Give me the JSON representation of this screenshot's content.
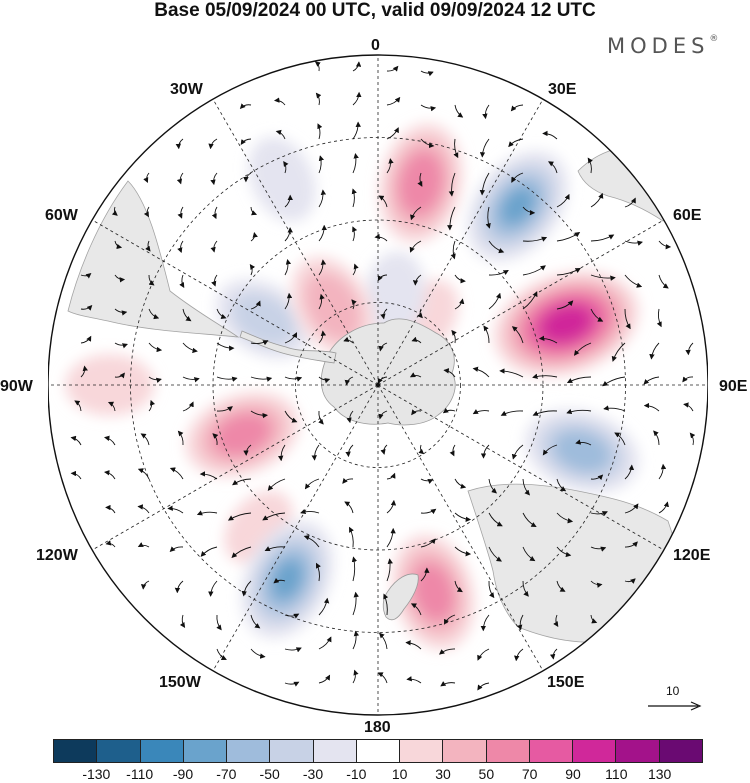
{
  "title": "Base 05/09/2024 00 UTC, valid 09/09/2024 12 UTC",
  "brand": "MODES",
  "brand_mark": "®",
  "longitude_labels": {
    "lon_0": "0",
    "lon_30e": "30E",
    "lon_60e": "60E",
    "lon_90e": "90E",
    "lon_120e": "120E",
    "lon_150e": "150E",
    "lon_180": "180",
    "lon_150w": "150W",
    "lon_120w": "120W",
    "lon_90w": "90W",
    "lon_60w": "60W",
    "lon_30w": "30W"
  },
  "reference_vector": {
    "label": "10"
  },
  "colorbar": {
    "colors": [
      "#0d3a5c",
      "#1e5f8c",
      "#3a87ba",
      "#6aa3cc",
      "#9fbcdc",
      "#c8d2e6",
      "#e4e4f0",
      "#ffffff",
      "#f8d7da",
      "#f3b4bf",
      "#ee88a8",
      "#e65aa2",
      "#d0289a",
      "#a3128a",
      "#6a0a72"
    ],
    "ticks": [
      "-130",
      "-110",
      "-90",
      "-70",
      "-50",
      "-30",
      "-10",
      "10",
      "30",
      "50",
      "70",
      "90",
      "110",
      "130"
    ]
  },
  "anomaly_centers": [
    {
      "lon": 12,
      "lat": -40,
      "value": 75,
      "sign": "positive"
    },
    {
      "lon": 38,
      "lat": -35,
      "value": -80,
      "sign": "negative"
    },
    {
      "lon": 72,
      "lat": -42,
      "value": 115,
      "sign": "positive"
    },
    {
      "lon": 108,
      "lat": -38,
      "value": -70,
      "sign": "negative"
    },
    {
      "lon": 165,
      "lat": -38,
      "value": 70,
      "sign": "positive"
    },
    {
      "lon": -155,
      "lat": -38,
      "value": -80,
      "sign": "negative"
    },
    {
      "lon": -110,
      "lat": -55,
      "value": 70,
      "sign": "positive"
    },
    {
      "lon": -60,
      "lat": -58,
      "value": -50,
      "sign": "negative"
    },
    {
      "lon": -25,
      "lat": -35,
      "value": -30,
      "sign": "negative"
    },
    {
      "lon": -30,
      "lat": -68,
      "value": 55,
      "sign": "positive"
    },
    {
      "lon": 10,
      "lat": -68,
      "value": -30,
      "sign": "negative"
    },
    {
      "lon": 35,
      "lat": -70,
      "value": 20,
      "sign": "positive"
    },
    {
      "lon": -90,
      "lat": -25,
      "value": 30,
      "sign": "positive"
    },
    {
      "lon": -140,
      "lat": -45,
      "value": 20,
      "sign": "positive"
    }
  ]
}
